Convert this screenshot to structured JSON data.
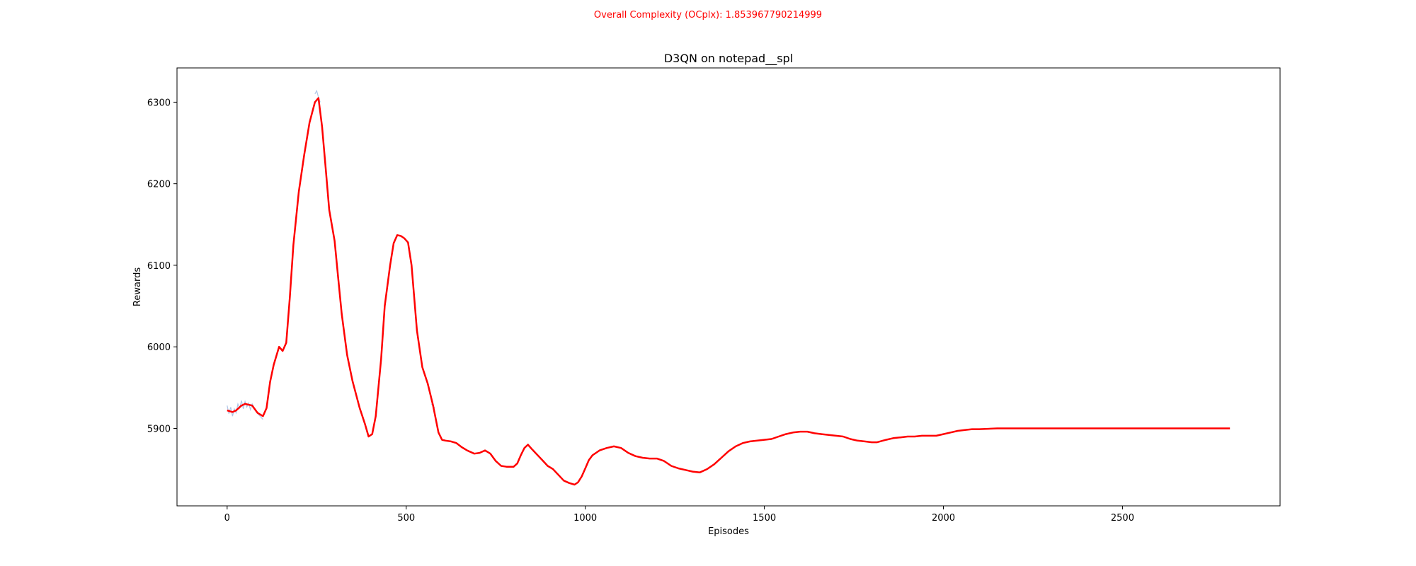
{
  "suptitle": "Overall Complexity (OCplx): 1.853967790214999",
  "chart_data": {
    "type": "line",
    "title": "D3QN on notepad__spl",
    "xlabel": "Episodes",
    "ylabel": "Rewards",
    "xlim": [
      -140,
      2940
    ],
    "ylim": [
      5805,
      6342
    ],
    "xticks": [
      0,
      500,
      1000,
      1500,
      2000,
      2500
    ],
    "yticks": [
      5900,
      6000,
      6100,
      6200,
      6300
    ],
    "grid": false,
    "colors": {
      "smoothed": "#ff0000",
      "raw": "#aec7e8",
      "suptitle": "#ff0000"
    },
    "series": [
      {
        "key": "smoothed",
        "x": [
          0,
          15,
          25,
          40,
          50,
          70,
          85,
          100,
          110,
          120,
          130,
          145,
          155,
          165,
          175,
          185,
          200,
          215,
          230,
          245,
          255,
          265,
          275,
          285,
          300,
          310,
          320,
          335,
          350,
          370,
          385,
          395,
          405,
          415,
          430,
          440,
          455,
          465,
          475,
          485,
          495,
          505,
          515,
          530,
          545,
          560,
          575,
          590,
          600,
          610,
          625,
          640,
          655,
          670,
          690,
          705,
          720,
          735,
          750,
          765,
          780,
          800,
          810,
          820,
          830,
          840,
          850,
          865,
          880,
          895,
          910,
          925,
          940,
          955,
          970,
          980,
          990,
          1000,
          1010,
          1020,
          1040,
          1060,
          1080,
          1100,
          1120,
          1140,
          1160,
          1180,
          1200,
          1220,
          1240,
          1260,
          1280,
          1300,
          1320,
          1340,
          1360,
          1380,
          1400,
          1420,
          1440,
          1460,
          1480,
          1500,
          1520,
          1540,
          1560,
          1580,
          1600,
          1620,
          1640,
          1660,
          1680,
          1700,
          1720,
          1740,
          1760,
          1780,
          1800,
          1815,
          1840,
          1860,
          1880,
          1900,
          1920,
          1940,
          1960,
          1980,
          2000,
          2020,
          2040,
          2060,
          2080,
          2100,
          2150,
          2200,
          2300,
          2400,
          2500,
          2600,
          2700,
          2800
        ],
        "y": [
          5922,
          5920,
          5922,
          5928,
          5930,
          5928,
          5919,
          5915,
          5925,
          5957,
          5978,
          6000,
          5995,
          6005,
          6060,
          6125,
          6190,
          6235,
          6275,
          6300,
          6305,
          6270,
          6220,
          6168,
          6130,
          6085,
          6040,
          5990,
          5958,
          5925,
          5905,
          5890,
          5893,
          5915,
          5985,
          6050,
          6100,
          6127,
          6137,
          6136,
          6133,
          6128,
          6100,
          6020,
          5975,
          5955,
          5928,
          5895,
          5886,
          5885,
          5884,
          5882,
          5877,
          5873,
          5869,
          5870,
          5873,
          5869,
          5860,
          5854,
          5853,
          5853,
          5857,
          5867,
          5876,
          5880,
          5875,
          5868,
          5861,
          5854,
          5850,
          5843,
          5836,
          5833,
          5831,
          5834,
          5841,
          5851,
          5861,
          5867,
          5873,
          5876,
          5878,
          5876,
          5870,
          5866,
          5864,
          5863,
          5863,
          5860,
          5854,
          5851,
          5849,
          5847,
          5846,
          5850,
          5856,
          5864,
          5872,
          5878,
          5882,
          5884,
          5885,
          5886,
          5887,
          5890,
          5893,
          5895,
          5896,
          5896,
          5894,
          5893,
          5892,
          5891,
          5890,
          5887,
          5885,
          5884,
          5883,
          5883,
          5886,
          5888,
          5889,
          5890,
          5890,
          5891,
          5891,
          5891,
          5893,
          5895,
          5897,
          5898,
          5899,
          5899,
          5900,
          5900,
          5900,
          5900,
          5900,
          5900,
          5900,
          5900
        ]
      },
      {
        "key": "raw",
        "x": [
          0,
          5,
          10,
          15,
          20,
          25,
          30,
          35,
          40,
          45,
          50,
          55,
          60,
          65,
          70,
          80,
          90,
          100,
          245,
          250,
          255,
          260,
          570,
          580
        ],
        "y": [
          5928,
          5918,
          5926,
          5915,
          5924,
          5919,
          5930,
          5925,
          5934,
          5924,
          5933,
          5926,
          5931,
          5923,
          5930,
          5921,
          5916,
          5911,
          6310,
          6314,
          6306,
          6300,
          5930,
          5925
        ]
      }
    ]
  }
}
